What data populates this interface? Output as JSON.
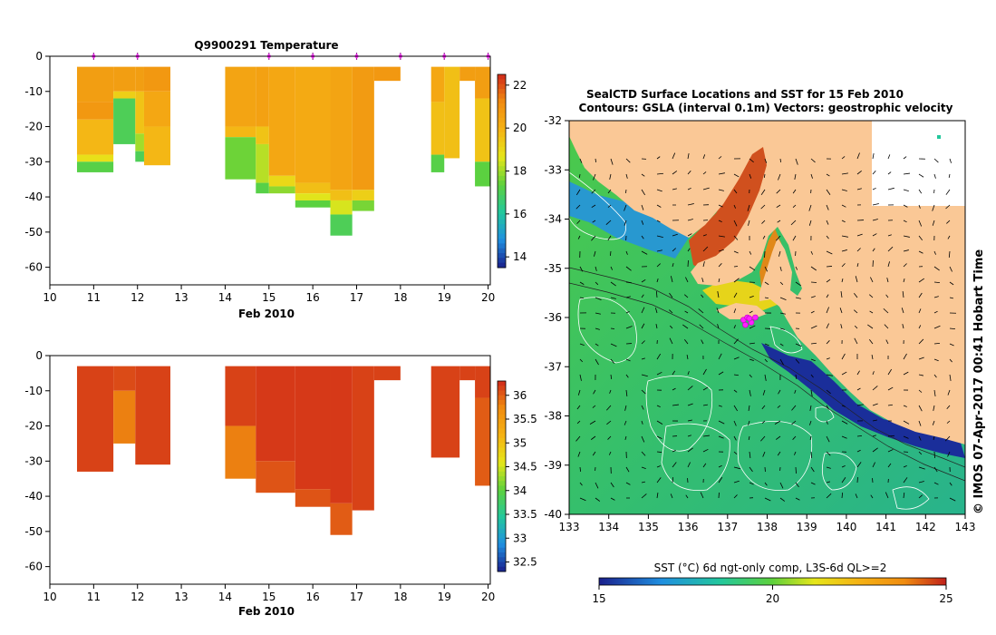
{
  "chart_data": [
    {
      "type": "heatmap",
      "title": "Q9900291  Temperature",
      "xlabel": "Feb 2010",
      "ylabel": "",
      "xlim": [
        10,
        20.05
      ],
      "ylim": [
        -65,
        0
      ],
      "x_ticks": [
        10,
        11,
        12,
        13,
        14,
        15,
        16,
        17,
        18,
        19,
        20
      ],
      "y_ticks": [
        0,
        -10,
        -20,
        -30,
        -40,
        -50,
        -60
      ],
      "profile_markers_x": [
        11,
        12,
        15,
        16,
        17,
        18,
        19,
        20
      ],
      "colorbar": {
        "min": 13.5,
        "max": 22.5,
        "ticks": [
          "22",
          "20",
          "18",
          "16",
          "14"
        ],
        "colors": [
          "#1a1f8c",
          "#1f8fe0",
          "#23c79c",
          "#5ed13c",
          "#e6e61a",
          "#f5b214",
          "#f08c10",
          "#d0281a"
        ]
      },
      "columns": [
        {
          "x0": 10.62,
          "x1": 11.45,
          "cells": [
            [
              -3,
              -13,
              20.6
            ],
            [
              -13,
              -18,
              20.8
            ],
            [
              -18,
              -28,
              19.8
            ],
            [
              -28,
              -30,
              18.8
            ],
            [
              -30,
              -33,
              17.2
            ]
          ]
        },
        {
          "x0": 11.45,
          "x1": 11.95,
          "cells": [
            [
              -3,
              -10,
              20.6
            ],
            [
              -10,
              -12,
              19.2
            ],
            [
              -12,
              -25,
              17.0
            ]
          ]
        },
        {
          "x0": 11.95,
          "x1": 12.15,
          "cells": [
            [
              -3,
              -10,
              20.6
            ],
            [
              -10,
              -22,
              19.5
            ],
            [
              -22,
              -27,
              18.0
            ],
            [
              -27,
              -30,
              17.0
            ]
          ]
        },
        {
          "x0": 12.15,
          "x1": 12.75,
          "cells": [
            [
              -3,
              -10,
              20.8
            ],
            [
              -10,
              -20,
              20.3
            ],
            [
              -20,
              -31,
              19.8
            ]
          ]
        },
        {
          "x0": 14.0,
          "x1": 14.7,
          "cells": [
            [
              -3,
              -20,
              20.4
            ],
            [
              -20,
              -23,
              19.8
            ],
            [
              -23,
              -35,
              17.5
            ]
          ]
        },
        {
          "x0": 14.7,
          "x1": 15.0,
          "cells": [
            [
              -3,
              -20,
              20.5
            ],
            [
              -20,
              -25,
              19.5
            ],
            [
              -25,
              -36,
              18.2
            ],
            [
              -36,
              -39,
              17.2
            ]
          ]
        },
        {
          "x0": 15.0,
          "x1": 15.6,
          "cells": [
            [
              -3,
              -34,
              20.3
            ],
            [
              -34,
              -37,
              19.0
            ],
            [
              -37,
              -39,
              17.8
            ]
          ]
        },
        {
          "x0": 15.6,
          "x1": 16.4,
          "cells": [
            [
              -3,
              -36,
              20.2
            ],
            [
              -36,
              -39,
              19.6
            ],
            [
              -39,
              -41,
              18.6
            ],
            [
              -41,
              -43,
              17.3
            ]
          ]
        },
        {
          "x0": 16.4,
          "x1": 16.9,
          "cells": [
            [
              -3,
              -38,
              20.4
            ],
            [
              -38,
              -41,
              19.6
            ],
            [
              -41,
              -45,
              18.5
            ],
            [
              -45,
              -51,
              17.0
            ]
          ]
        },
        {
          "x0": 16.9,
          "x1": 17.4,
          "cells": [
            [
              -3,
              -38,
              20.7
            ],
            [
              -38,
              -41,
              19.2
            ],
            [
              -41,
              -44,
              17.6
            ]
          ]
        },
        {
          "x0": 17.4,
          "x1": 18.0,
          "cells": [
            [
              -3,
              -7,
              20.8
            ]
          ]
        },
        {
          "x0": 18.7,
          "x1": 19.0,
          "cells": [
            [
              -3,
              -13,
              20.3
            ],
            [
              -13,
              -28,
              19.6
            ],
            [
              -28,
              -33,
              17.2
            ]
          ]
        },
        {
          "x0": 19.0,
          "x1": 19.35,
          "cells": [
            [
              -3,
              -29,
              19.6
            ]
          ]
        },
        {
          "x0": 19.35,
          "x1": 19.7,
          "cells": [
            [
              -3,
              -7,
              20.6
            ]
          ]
        },
        {
          "x0": 19.7,
          "x1": 20.05,
          "cells": [
            [
              -3,
              -12,
              20.6
            ],
            [
              -12,
              -30,
              19.5
            ],
            [
              -30,
              -37,
              17.3
            ]
          ]
        }
      ]
    },
    {
      "type": "heatmap",
      "title": "",
      "xlabel": "Feb 2010",
      "ylabel": "",
      "xlim": [
        10,
        20.05
      ],
      "ylim": [
        -65,
        0
      ],
      "x_ticks": [
        10,
        11,
        12,
        13,
        14,
        15,
        16,
        17,
        18,
        19,
        20
      ],
      "y_ticks": [
        0,
        -10,
        -20,
        -30,
        -40,
        -50,
        -60
      ],
      "colorbar": {
        "min": 32.3,
        "max": 36.3,
        "ticks": [
          "36",
          "35.5",
          "35",
          "34.5",
          "34",
          "33.5",
          "33",
          "32.5"
        ],
        "colors": [
          "#1a1f8c",
          "#1f8fe0",
          "#23c79c",
          "#5ed13c",
          "#e6e61a",
          "#f5b214",
          "#f08c10",
          "#d0281a"
        ]
      },
      "columns": [
        {
          "x0": 10.62,
          "x1": 11.45,
          "cells": [
            [
              -3,
              -33,
              36.15
            ]
          ]
        },
        {
          "x0": 11.45,
          "x1": 11.95,
          "cells": [
            [
              -3,
              -10,
              36.1
            ],
            [
              -10,
              -25,
              35.8
            ]
          ]
        },
        {
          "x0": 11.95,
          "x1": 12.75,
          "cells": [
            [
              -3,
              -31,
              36.15
            ]
          ]
        },
        {
          "x0": 14.0,
          "x1": 14.7,
          "cells": [
            [
              -3,
              -20,
              36.15
            ],
            [
              -20,
              -35,
              35.8
            ]
          ]
        },
        {
          "x0": 14.7,
          "x1": 15.6,
          "cells": [
            [
              -3,
              -30,
              36.2
            ],
            [
              -30,
              -39,
              36.05
            ]
          ]
        },
        {
          "x0": 15.6,
          "x1": 16.4,
          "cells": [
            [
              -3,
              -38,
              36.2
            ],
            [
              -38,
              -43,
              36.05
            ]
          ]
        },
        {
          "x0": 16.4,
          "x1": 16.9,
          "cells": [
            [
              -3,
              -42,
              36.2
            ],
            [
              -42,
              -51,
              36.0
            ]
          ]
        },
        {
          "x0": 16.9,
          "x1": 17.4,
          "cells": [
            [
              -3,
              -44,
              36.15
            ]
          ]
        },
        {
          "x0": 17.4,
          "x1": 18.0,
          "cells": [
            [
              -3,
              -7,
              36.15
            ]
          ]
        },
        {
          "x0": 18.7,
          "x1": 19.35,
          "cells": [
            [
              -3,
              -29,
              36.15
            ]
          ]
        },
        {
          "x0": 19.35,
          "x1": 19.7,
          "cells": [
            [
              -3,
              -7,
              36.15
            ]
          ]
        },
        {
          "x0": 19.7,
          "x1": 20.05,
          "cells": [
            [
              -3,
              -12,
              36.15
            ],
            [
              -12,
              -37,
              36.0
            ]
          ]
        }
      ]
    },
    {
      "type": "heatmap",
      "title": "SealCTD Surface Locations and SST for 15 Feb 2010",
      "subtitle": "Contours: GSLA (interval 0.1m) Vectors: geostrophic velocity",
      "xlabel": "",
      "ylabel": "",
      "xlim": [
        133,
        143
      ],
      "ylim": [
        -40,
        -32
      ],
      "x_ticks": [
        133,
        134,
        135,
        136,
        137,
        138,
        139,
        140,
        141,
        142,
        143
      ],
      "y_ticks": [
        -32,
        -33,
        -34,
        -35,
        -36,
        -37,
        -38,
        -39,
        -40
      ],
      "colorbar": {
        "label": "SST (°C) 6d ngt-only comp, L3S-6d QL>=2",
        "min": 15,
        "max": 25,
        "ticks": [
          "15",
          "20",
          "25"
        ],
        "colors": [
          "#1a1f8c",
          "#1f8fe0",
          "#23c79c",
          "#5ed13c",
          "#e6e61a",
          "#f5b214",
          "#f08c10",
          "#d0281a"
        ]
      },
      "seal_locations": [
        [
          137.4,
          -36.05
        ],
        [
          137.5,
          -36.0
        ],
        [
          137.6,
          -36.1
        ],
        [
          137.7,
          -36.0
        ],
        [
          137.45,
          -36.15
        ],
        [
          137.55,
          -36.02
        ]
      ],
      "annotation": "© IMOS 07-Apr-2017 00:41 Hobart Time"
    }
  ]
}
